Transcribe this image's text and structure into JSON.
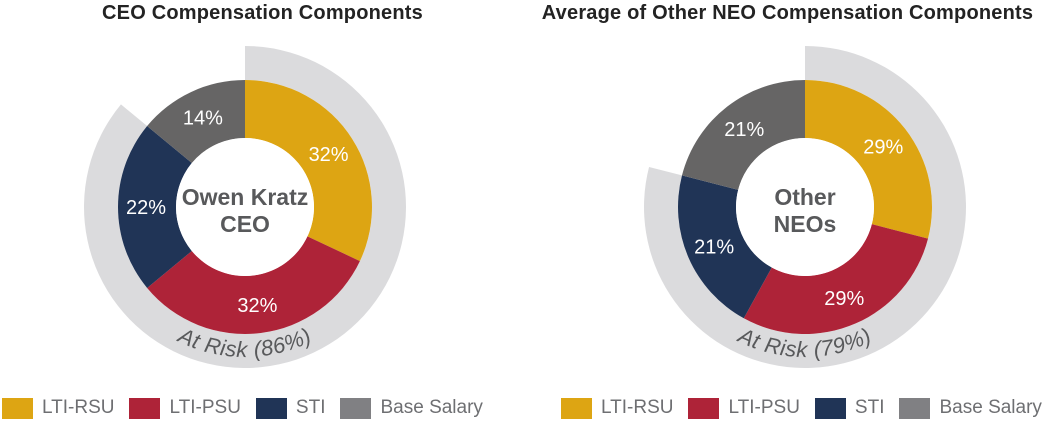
{
  "chart_data": [
    {
      "type": "pie",
      "subtype": "donut-with-outer-arc",
      "title": "CEO Compensation Components",
      "center_label": [
        "Owen Kratz",
        "CEO"
      ],
      "categories": [
        "LTI-RSU",
        "LTI-PSU",
        "STI",
        "Base Salary"
      ],
      "values": [
        32,
        32,
        22,
        14
      ],
      "labels": [
        "32%",
        "32%",
        "22%",
        "14%"
      ],
      "colors": [
        "#DDA513",
        "#AE2338",
        "#203456",
        "#666565"
      ],
      "annotation": "At Risk (86%)",
      "at_risk_pct": 86,
      "start_angle_deg": 0,
      "direction": "clockwise",
      "legend_position": "bottom"
    },
    {
      "type": "pie",
      "subtype": "donut-with-outer-arc",
      "title": "Average of Other NEO Compensation Components",
      "center_label": [
        "Other",
        "NEOs"
      ],
      "categories": [
        "LTI-RSU",
        "LTI-PSU",
        "STI",
        "Base Salary"
      ],
      "values": [
        29,
        29,
        21,
        21
      ],
      "labels": [
        "29%",
        "29%",
        "21%",
        "21%"
      ],
      "colors": [
        "#DDA513",
        "#AE2338",
        "#203456",
        "#666565"
      ],
      "annotation": "At Risk (79%)",
      "at_risk_pct": 79,
      "start_angle_deg": 0,
      "direction": "clockwise",
      "legend_position": "bottom"
    }
  ],
  "legend": {
    "items": [
      {
        "label": "LTI-RSU",
        "color": "#DDA513"
      },
      {
        "label": "LTI-PSU",
        "color": "#AE2338"
      },
      {
        "label": "STI",
        "color": "#203456"
      },
      {
        "label": "Base Salary",
        "color": "#808083"
      }
    ]
  },
  "colors": {
    "at_risk_ring": "#DBDBDD",
    "title_text": "#232323",
    "center_text": "#58595B",
    "annotation_text": "#58595B",
    "legend_text": "#6E6F72",
    "value_label_text": "#FFFFFF"
  }
}
